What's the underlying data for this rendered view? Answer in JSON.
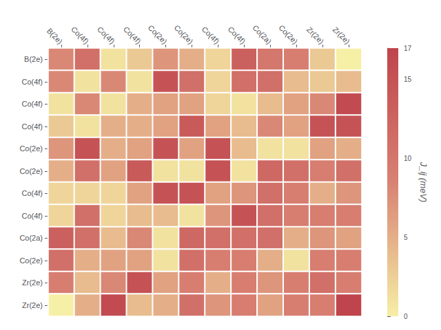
{
  "chart_data": {
    "type": "heatmap",
    "x_categories": [
      "B(2e)",
      "Co(4f)",
      "Co(4f)",
      "Co(4f)",
      "Co(2e)",
      "Co(2e)",
      "Co(4f)",
      "Co(4f)",
      "Co(2a)",
      "Co(2e)",
      "Zr(2e)",
      "Zr(2e)"
    ],
    "y_categories": [
      "B(2e)",
      "Co(4f)",
      "Co(4f)",
      "Co(4f)",
      "Co(2e)",
      "Co(2e)",
      "Co(4f)",
      "Co(4f)",
      "Co(2a)",
      "Co(2e)",
      "Zr(2e)",
      "Zr(2e)"
    ],
    "values": [
      [
        8,
        11,
        1,
        3,
        7,
        5,
        2,
        13,
        10,
        9,
        3,
        0
      ],
      [
        8,
        1,
        8,
        1,
        15,
        11,
        2,
        11,
        11,
        4,
        3,
        4
      ],
      [
        1,
        8,
        1,
        5,
        6,
        6,
        2,
        1,
        4,
        6,
        8,
        16
      ],
      [
        3,
        1,
        5,
        5,
        6,
        14,
        6,
        4,
        8,
        6,
        15,
        15
      ],
      [
        7,
        15,
        5,
        6,
        15,
        6,
        15,
        4,
        1,
        1,
        6,
        5
      ],
      [
        5,
        11,
        6,
        14,
        1,
        1,
        15,
        1,
        12,
        11,
        9,
        11
      ],
      [
        2,
        2,
        2,
        6,
        15,
        15,
        6,
        7,
        11,
        9,
        5,
        7
      ],
      [
        2,
        11,
        2,
        4,
        4,
        1,
        7,
        15,
        11,
        9,
        9,
        9
      ],
      [
        13,
        11,
        4,
        8,
        1,
        12,
        11,
        11,
        11,
        5,
        7,
        6
      ],
      [
        11,
        5,
        6,
        6,
        1,
        11,
        9,
        9,
        5,
        1,
        9,
        9
      ],
      [
        9,
        4,
        8,
        15,
        6,
        9,
        5,
        9,
        7,
        9,
        11,
        9
      ],
      [
        0,
        5,
        16,
        4,
        5,
        11,
        7,
        9,
        6,
        9,
        9,
        17
      ]
    ],
    "colorbar_label": "J_ij (meV)",
    "colorbar_range": [
      0,
      17
    ],
    "colorbar_ticks": [
      0,
      5,
      10,
      15
    ]
  }
}
